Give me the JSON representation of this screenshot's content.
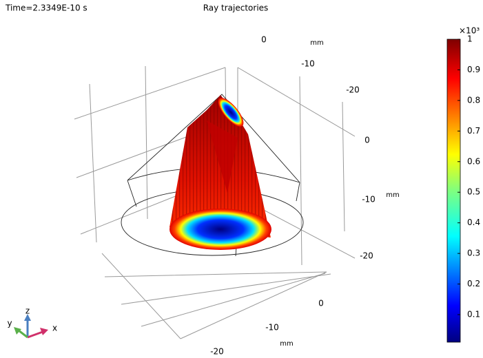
{
  "time_label": "Time=2.3349E-10 s",
  "title": "Ray trajectories",
  "axes": {
    "x": {
      "ticks": [
        0,
        -10,
        -20
      ],
      "unit": "mm"
    },
    "y": {
      "ticks": [
        0,
        -10,
        -20
      ],
      "unit": "mm"
    },
    "z": {
      "ticks": [
        0,
        -10,
        -20
      ],
      "unit": "mm"
    }
  },
  "triad": {
    "x": "x",
    "y": "y",
    "z": "z"
  },
  "colorbar": {
    "multiplier": "×10³",
    "lim": [
      0.01,
      1
    ],
    "ticks": [
      0.1,
      0.2,
      0.3,
      0.4,
      0.5,
      0.6,
      0.7,
      0.8,
      0.9,
      1
    ]
  }
}
